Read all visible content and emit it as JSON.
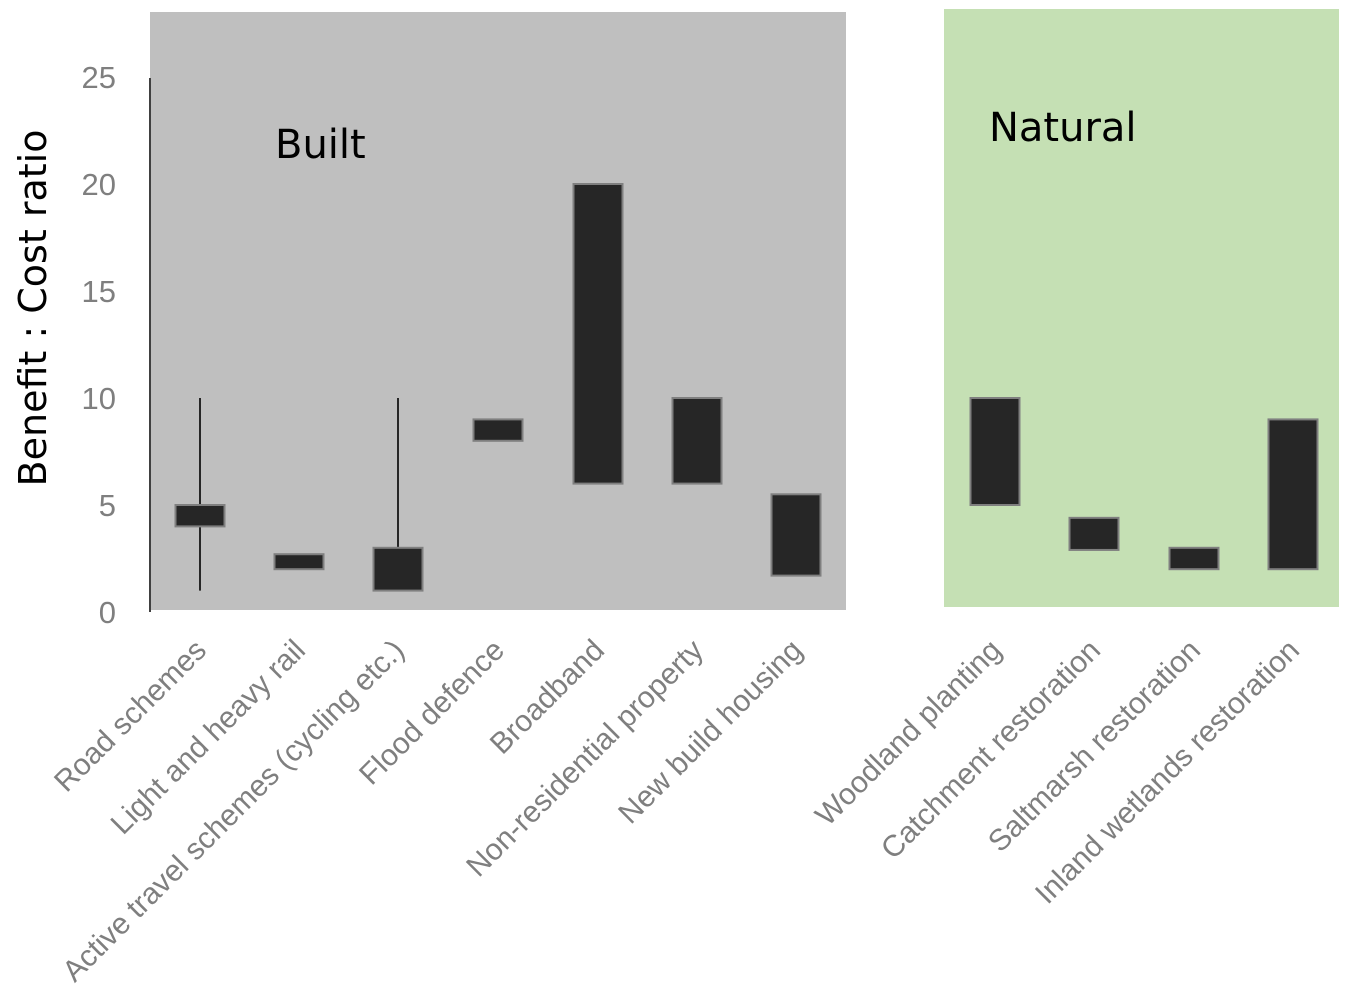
{
  "chart_data": {
    "type": "bar",
    "subtype": "floating-range",
    "ylabel": "Benefit : Cost ratio",
    "ylim": [
      0,
      25
    ],
    "yticks": [
      "0",
      "5",
      "10",
      "15",
      "20",
      "25"
    ],
    "grid": false,
    "colors": {
      "built_panel": "#bfbfbf",
      "natural_panel": "#c5e0b4",
      "bar_fill": "#262626",
      "bar_stroke": "#7f7f7f",
      "tick_text": "#7f7f7f"
    },
    "groups": [
      {
        "name": "Built",
        "categories": [
          {
            "label": "Road schemes",
            "low": 4,
            "high": 5,
            "whisker_low": 1,
            "whisker_high": 10
          },
          {
            "label": "Light and heavy rail",
            "low": 2,
            "high": 2.7
          },
          {
            "label": "Active travel schemes (cycling etc.)",
            "low": 1,
            "high": 3,
            "whisker_low": 1,
            "whisker_high": 10
          },
          {
            "label": "Flood defence",
            "low": 8,
            "high": 9
          },
          {
            "label": "Broadband",
            "low": 6,
            "high": 20
          },
          {
            "label": "Non-residential property",
            "low": 6,
            "high": 10
          },
          {
            "label": "New build housing",
            "low": 1.7,
            "high": 5.5
          }
        ]
      },
      {
        "name": "Natural",
        "categories": [
          {
            "label": "Woodland planting",
            "low": 5,
            "high": 10
          },
          {
            "label": "Catchment restoration",
            "low": 2.9,
            "high": 4.4
          },
          {
            "label": "Saltmarsh restoration",
            "low": 2,
            "high": 3
          },
          {
            "label": "Inland wetlands restoration",
            "low": 2,
            "high": 9
          }
        ]
      }
    ]
  }
}
